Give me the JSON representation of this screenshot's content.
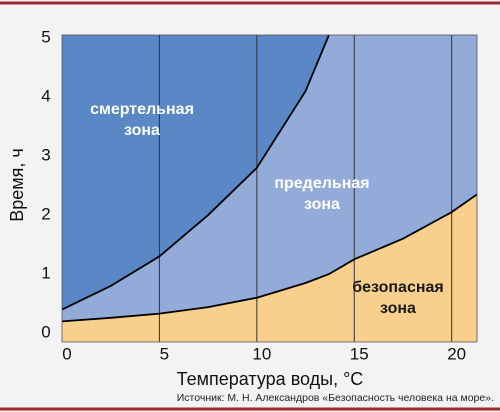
{
  "chart_data": {
    "type": "zones",
    "xlabel": "Температура воды, °C",
    "ylabel": "Время, ч",
    "source": "Источник: М. Н. Александров «Безопасность человека на море».",
    "xlim": [
      0,
      21.3
    ],
    "ylim": [
      -0.15,
      5.05
    ],
    "xticks": [
      0,
      5,
      10,
      15,
      20
    ],
    "yticks": [
      0,
      1,
      2,
      3,
      4,
      5
    ],
    "x": [
      0,
      2.5,
      5,
      7.5,
      10,
      12.5,
      13.7,
      15,
      17.5,
      20,
      21.3
    ],
    "boundaries": [
      {
        "values": [
          0.4,
          0.8,
          1.3,
          2.0,
          2.8,
          4.1,
          5.05,
          null,
          null,
          null,
          null
        ]
      },
      {
        "values": [
          0.2,
          0.26,
          0.33,
          0.44,
          0.6,
          0.85,
          1.0,
          1.25,
          1.6,
          2.05,
          2.35
        ]
      }
    ],
    "zones": [
      {
        "label": [
          "смертельная",
          "зона"
        ],
        "color": "#5a87c6",
        "text_color": "#ffffff"
      },
      {
        "label": [
          "предельная",
          "зона"
        ],
        "color": "#93abd9",
        "text_color": "#ffffff"
      },
      {
        "label": [
          "безопасная",
          "зона"
        ],
        "color": "#f9cf8d",
        "text_color": "#1a1a1a"
      }
    ]
  }
}
